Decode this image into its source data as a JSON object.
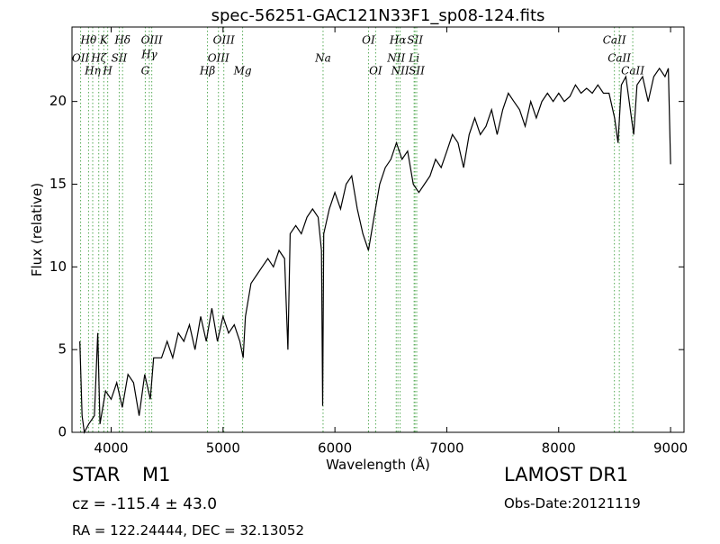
{
  "chart_data": {
    "type": "line",
    "title": "spec-56251-GAC121N33F1_sp08-124.fits",
    "xlabel": "Wavelength (Å)",
    "ylabel": "Flux (relative)",
    "xlim": [
      3650,
      9120
    ],
    "ylim": [
      0,
      24.5
    ],
    "xticks": [
      4000,
      5000,
      6000,
      7000,
      8000,
      9000
    ],
    "yticks": [
      0,
      5,
      10,
      15,
      20
    ],
    "color": "#000000",
    "line_color": "#55aa55",
    "annotations": [
      {
        "label": "OII",
        "wavelength": 3727
      },
      {
        "label": "Hθ",
        "wavelength": 3798
      },
      {
        "label": "Hη",
        "wavelength": 3835
      },
      {
        "label": "Hζ",
        "wavelength": 3889
      },
      {
        "label": "K",
        "wavelength": 3934
      },
      {
        "label": "H",
        "wavelength": 3969
      },
      {
        "label": "SII",
        "wavelength": 4072
      },
      {
        "label": "Hδ",
        "wavelength": 4102
      },
      {
        "label": "G",
        "wavelength": 4305
      },
      {
        "label": "Hγ",
        "wavelength": 4341
      },
      {
        "label": "OIII",
        "wavelength": 4363
      },
      {
        "label": "Hβ",
        "wavelength": 4861
      },
      {
        "label": "OIII",
        "wavelength": 4959
      },
      {
        "label": "OIII",
        "wavelength": 5007
      },
      {
        "label": "Mg",
        "wavelength": 5175
      },
      {
        "label": "Na",
        "wavelength": 5894
      },
      {
        "label": "OI",
        "wavelength": 6300
      },
      {
        "label": "OI",
        "wavelength": 6364
      },
      {
        "label": "NII",
        "wavelength": 6548
      },
      {
        "label": "Hα",
        "wavelength": 6563
      },
      {
        "label": "NII",
        "wavelength": 6583
      },
      {
        "label": "Li",
        "wavelength": 6708
      },
      {
        "label": "SII",
        "wavelength": 6716
      },
      {
        "label": "SII",
        "wavelength": 6731
      },
      {
        "label": "CaII",
        "wavelength": 8498
      },
      {
        "label": "CaII",
        "wavelength": 8542
      },
      {
        "label": "CaII",
        "wavelength": 8662
      }
    ],
    "x": [
      3720,
      3740,
      3760,
      3800,
      3850,
      3880,
      3900,
      3950,
      4000,
      4050,
      4100,
      4150,
      4200,
      4250,
      4300,
      4350,
      4380,
      4450,
      4500,
      4550,
      4600,
      4650,
      4700,
      4750,
      4800,
      4850,
      4900,
      4950,
      5000,
      5050,
      5100,
      5150,
      5180,
      5200,
      5250,
      5300,
      5350,
      5400,
      5450,
      5500,
      5550,
      5580,
      5600,
      5650,
      5700,
      5750,
      5800,
      5850,
      5880,
      5890,
      5900,
      5950,
      6000,
      6050,
      6100,
      6150,
      6200,
      6250,
      6300,
      6350,
      6400,
      6450,
      6500,
      6550,
      6600,
      6650,
      6700,
      6750,
      6800,
      6850,
      6900,
      6950,
      7000,
      7050,
      7100,
      7150,
      7200,
      7250,
      7300,
      7350,
      7400,
      7450,
      7500,
      7550,
      7600,
      7650,
      7700,
      7750,
      7800,
      7850,
      7900,
      7950,
      8000,
      8050,
      8100,
      8150,
      8200,
      8250,
      8300,
      8350,
      8400,
      8450,
      8500,
      8530,
      8560,
      8600,
      8650,
      8670,
      8700,
      8750,
      8800,
      8850,
      8900,
      8950,
      8980,
      9000
    ],
    "values": [
      5.5,
      1,
      0,
      0.5,
      1,
      6,
      0.5,
      2.5,
      2,
      3,
      1.5,
      3.5,
      3,
      1,
      3.5,
      2,
      4.5,
      4.5,
      5.5,
      4.5,
      6,
      5.5,
      6.5,
      5,
      7,
      5.5,
      7.5,
      5.5,
      7,
      6,
      6.5,
      5.5,
      4.5,
      7,
      9,
      9.5,
      10,
      10.5,
      10,
      11,
      10.5,
      5,
      12,
      12.5,
      12,
      13,
      13.5,
      13,
      11,
      1.6,
      12,
      13.5,
      14.5,
      13.5,
      15,
      15.5,
      13.5,
      12,
      11,
      13,
      15,
      16,
      16.5,
      17.5,
      16.5,
      17,
      15,
      14.5,
      15,
      15.5,
      16.5,
      16,
      17,
      18,
      17.5,
      16,
      18,
      19,
      18,
      18.5,
      19.5,
      18,
      19.5,
      20.5,
      20,
      19.5,
      18.5,
      20,
      19,
      20,
      20.5,
      20,
      20.5,
      20,
      20.3,
      21,
      20.5,
      20.8,
      20.5,
      21,
      20.5,
      20.5,
      19,
      17.5,
      21,
      21.5,
      19,
      18,
      21,
      21.5,
      20,
      21.5,
      22,
      21.5,
      22,
      16.2
    ]
  },
  "info": {
    "class": "STAR",
    "subclass": "M1",
    "cz": "cz = -115.4  ± 43.0",
    "coords": "RA = 122.24444, DEC = 32.13052",
    "survey": "LAMOST DR1",
    "date": "Obs-Date:20121119"
  }
}
